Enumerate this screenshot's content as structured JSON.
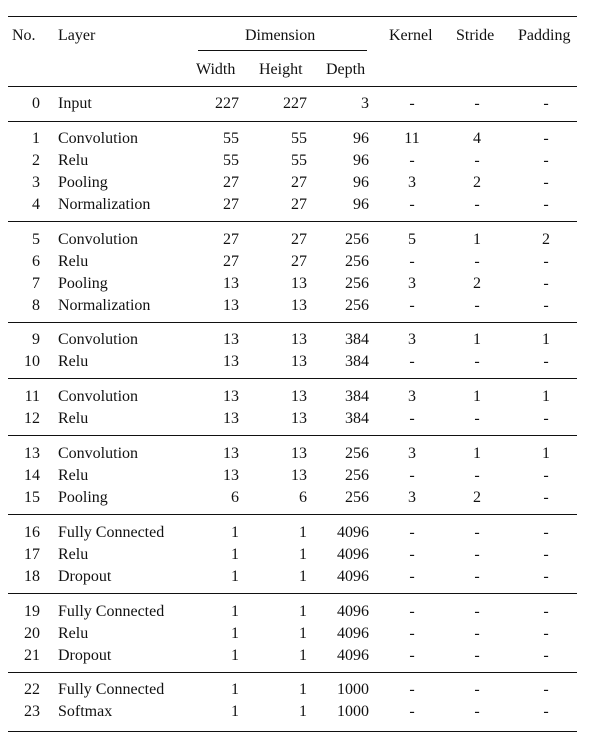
{
  "table": {
    "headers": {
      "no": "No.",
      "layer": "Layer",
      "dimension": "Dimension",
      "width": "Width",
      "height": "Height",
      "depth": "Depth",
      "kernel": "Kernel",
      "stride": "Stride",
      "padding": "Padding"
    },
    "groups": [
      [
        [
          "0",
          "Input",
          "227",
          "227",
          "3",
          "-",
          "-",
          "-"
        ]
      ],
      [
        [
          "1",
          "Convolution",
          "55",
          "55",
          "96",
          "11",
          "4",
          "-"
        ],
        [
          "2",
          "Relu",
          "55",
          "55",
          "96",
          "-",
          "-",
          "-"
        ],
        [
          "3",
          "Pooling",
          "27",
          "27",
          "96",
          "3",
          "2",
          "-"
        ],
        [
          "4",
          "Normalization",
          "27",
          "27",
          "96",
          "-",
          "-",
          "-"
        ]
      ],
      [
        [
          "5",
          "Convolution",
          "27",
          "27",
          "256",
          "5",
          "1",
          "2"
        ],
        [
          "6",
          "Relu",
          "27",
          "27",
          "256",
          "-",
          "-",
          "-"
        ],
        [
          "7",
          "Pooling",
          "13",
          "13",
          "256",
          "3",
          "2",
          "-"
        ],
        [
          "8",
          "Normalization",
          "13",
          "13",
          "256",
          "-",
          "-",
          "-"
        ]
      ],
      [
        [
          "9",
          "Convolution",
          "13",
          "13",
          "384",
          "3",
          "1",
          "1"
        ],
        [
          "10",
          "Relu",
          "13",
          "13",
          "384",
          "-",
          "-",
          "-"
        ]
      ],
      [
        [
          "11",
          "Convolution",
          "13",
          "13",
          "384",
          "3",
          "1",
          "1"
        ],
        [
          "12",
          "Relu",
          "13",
          "13",
          "384",
          "-",
          "-",
          "-"
        ]
      ],
      [
        [
          "13",
          "Convolution",
          "13",
          "13",
          "256",
          "3",
          "1",
          "1"
        ],
        [
          "14",
          "Relu",
          "13",
          "13",
          "256",
          "-",
          "-",
          "-"
        ],
        [
          "15",
          "Pooling",
          "6",
          "6",
          "256",
          "3",
          "2",
          "-"
        ]
      ],
      [
        [
          "16",
          "Fully Connected",
          "1",
          "1",
          "4096",
          "-",
          "-",
          "-"
        ],
        [
          "17",
          "Relu",
          "1",
          "1",
          "4096",
          "-",
          "-",
          "-"
        ],
        [
          "18",
          "Dropout",
          "1",
          "1",
          "4096",
          "-",
          "-",
          "-"
        ]
      ],
      [
        [
          "19",
          "Fully Connected",
          "1",
          "1",
          "4096",
          "-",
          "-",
          "-"
        ],
        [
          "20",
          "Relu",
          "1",
          "1",
          "4096",
          "-",
          "-",
          "-"
        ],
        [
          "21",
          "Dropout",
          "1",
          "1",
          "4096",
          "-",
          "-",
          "-"
        ]
      ],
      [
        [
          "22",
          "Fully Connected",
          "1",
          "1",
          "1000",
          "-",
          "-",
          "-"
        ],
        [
          "23",
          "Softmax",
          "1",
          "1",
          "1000",
          "-",
          "-",
          "-"
        ]
      ]
    ]
  }
}
